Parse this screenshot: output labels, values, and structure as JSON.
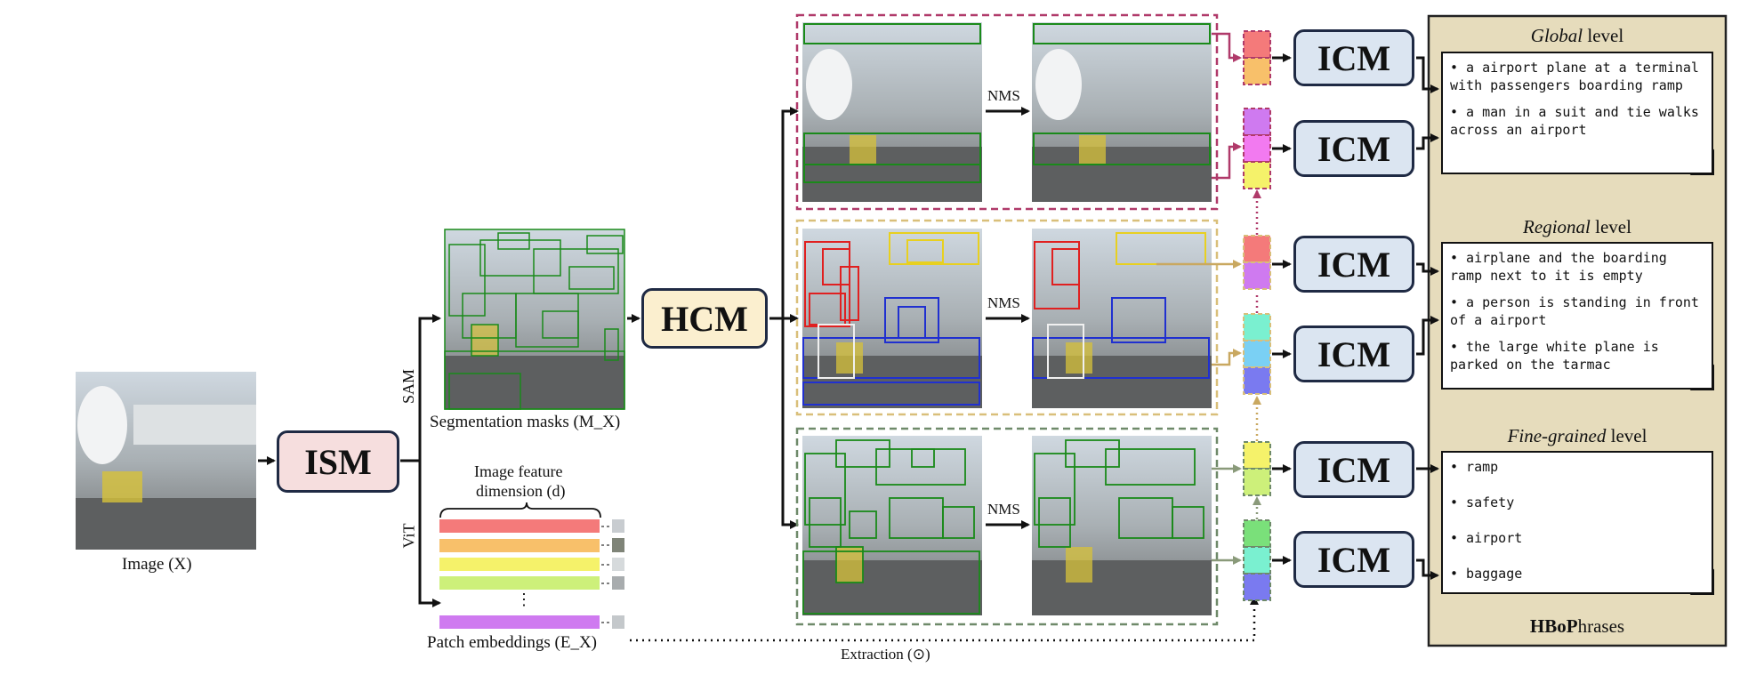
{
  "input": {
    "label": "Image (X)"
  },
  "modules": {
    "ism": "ISM",
    "hcm": "HCM",
    "icm": "ICM"
  },
  "branches": {
    "sam": "SAM",
    "vit": "ViT"
  },
  "segmentation": {
    "label": "Segmentation masks (M_X)"
  },
  "features": {
    "title_line1": "Image feature",
    "title_line2": "dimension (d)",
    "ellipsis": "⋮",
    "patch_label": "Patch embeddings (E_X)",
    "bar_colors": [
      "#f47a7a",
      "#f8c06a",
      "#f5f26a",
      "#cdf07a",
      "#cf7af0"
    ]
  },
  "nms_label": "NMS",
  "extraction_label": "Extraction (⊙)",
  "panel": {
    "title_prefix": "HBoP",
    "title_suffix": "hrases",
    "global": {
      "title_italic": "Global",
      "title_rest": " level",
      "items": [
        "• a airport plane at a terminal with passengers boarding ramp",
        "• a man in a suit and tie walks across an airport"
      ]
    },
    "regional": {
      "title_italic": "Regional",
      "title_rest": " level",
      "items": [
        "• airplane and the boarding ramp next to it is empty",
        "• a person is standing in front of a airport",
        "• the large white plane is parked on the tarmac"
      ]
    },
    "fine": {
      "title_italic": "Fine-grained",
      "title_rest": " level",
      "items": [
        "• ramp",
        "• safety",
        "• airport",
        "• baggage"
      ]
    }
  },
  "colors": {
    "group_global": "#b03a6a",
    "group_regional": "#d9bf7a",
    "group_fine": "#6f8a6a",
    "panel_bg": "#e6dcbc"
  }
}
